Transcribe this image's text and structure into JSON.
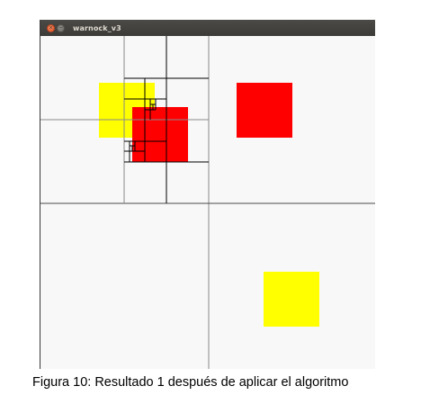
{
  "window": {
    "title": "warnock_v3",
    "close_glyph": "×",
    "minimize_glyph": "−"
  },
  "caption": "Figura 10: Resultado 1 después de aplicar el algoritmo",
  "colors": {
    "titlebar": "#3c3b37",
    "canvas_background": "#f8f8f8",
    "polygon_red": "#ff0000",
    "polygon_yellow": "#ffff00",
    "subdivision_line_gray": "#8a8a8a",
    "subdivision_line_black": "#000000"
  },
  "shapes": [
    {
      "name": "yellow-square-left",
      "color": "yellow"
    },
    {
      "name": "red-square-center",
      "color": "red"
    },
    {
      "name": "red-square-right",
      "color": "red"
    },
    {
      "name": "yellow-square-bottom",
      "color": "yellow"
    }
  ]
}
